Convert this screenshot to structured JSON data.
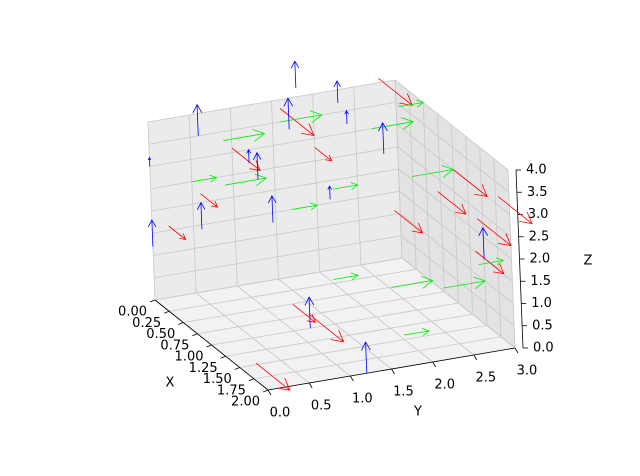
{
  "chart_data": {
    "type": "quiver3d",
    "xlabel": "X",
    "ylabel": "Y",
    "zlabel": "Z",
    "xlim": [
      0,
      2
    ],
    "ylim": [
      0,
      3
    ],
    "zlim": [
      0,
      4
    ],
    "xticks": [
      {
        "value": 0,
        "label": "0.00"
      },
      {
        "value": 0.25,
        "label": "0.25"
      },
      {
        "value": 0.5,
        "label": "0.50"
      },
      {
        "value": 0.75,
        "label": "0.75"
      },
      {
        "value": 1,
        "label": "1.00"
      },
      {
        "value": 1.25,
        "label": "1.25"
      },
      {
        "value": 1.5,
        "label": "1.50"
      },
      {
        "value": 1.75,
        "label": "1.75"
      },
      {
        "value": 2,
        "label": "2.00"
      }
    ],
    "yticks": [
      {
        "value": 0,
        "label": "0.0"
      },
      {
        "value": 0.5,
        "label": "0.5"
      },
      {
        "value": 1,
        "label": "1.0"
      },
      {
        "value": 1.5,
        "label": "1.5"
      },
      {
        "value": 2,
        "label": "2.0"
      },
      {
        "value": 2.5,
        "label": "2.5"
      },
      {
        "value": 3,
        "label": "3.0"
      }
    ],
    "zticks": [
      {
        "value": 0,
        "label": "0.0"
      },
      {
        "value": 0.5,
        "label": "0.5"
      },
      {
        "value": 1,
        "label": "1.0"
      },
      {
        "value": 1.5,
        "label": "1.5"
      },
      {
        "value": 2,
        "label": "2.0"
      },
      {
        "value": 2.5,
        "label": "2.5"
      },
      {
        "value": 3,
        "label": "3.0"
      },
      {
        "value": 3.5,
        "label": "3.5"
      },
      {
        "value": 4,
        "label": "4.0"
      }
    ],
    "grid": true,
    "series": [
      {
        "color": "#ff0000",
        "direction": "x",
        "x": [
          0,
          0,
          0,
          0,
          0,
          0,
          1,
          1,
          1.8,
          0.5,
          0.7,
          1,
          1.4,
          1.5,
          1.8
        ],
        "y": [
          0.2,
          0.6,
          1.0,
          1.6,
          2.8,
          2.0,
          1.0,
          1.2,
          0.0,
          2.6,
          3,
          3,
          3,
          2.9,
          3
        ],
        "z": [
          1.6,
          2.2,
          3.1,
          3.8,
          4.1,
          2.8,
          0.6,
          0.3,
          0.4,
          1.7,
          2.2,
          3,
          2.3,
          1.7,
          3.2
        ],
        "lengths": [
          0.3,
          0.3,
          0.5,
          0.6,
          0.6,
          0.3,
          0.4,
          0.6,
          0.6,
          0.5,
          0.5,
          0.6,
          0.6,
          0.5,
          0.6
        ]
      },
      {
        "color": "#00ee00",
        "direction": "y",
        "x": [
          0,
          0,
          0,
          0,
          1,
          0,
          0,
          1,
          1.5,
          1,
          0.5,
          0,
          1.5,
          2
        ],
        "y": [
          0.9,
          1.6,
          0.5,
          0.9,
          1.5,
          1.7,
          2.2,
          2.2,
          2.0,
          2.5,
          2.7,
          2.7,
          2.5,
          2.6
        ],
        "z": [
          3.3,
          3.5,
          2.5,
          2.3,
          1,
          1.5,
          1.8,
          0.6,
          0.1,
          3.0,
          4.0,
          3.0,
          1.0,
          2.0
        ],
        "lengths": [
          0.5,
          0.5,
          0.3,
          0.5,
          0.3,
          0.3,
          0.3,
          0.5,
          0.3,
          0.5,
          0.3,
          0.5,
          0.5,
          0.3
        ]
      },
      {
        "color": "#0000ff",
        "direction": "z",
        "x": [
          0,
          0,
          0,
          0,
          0,
          0,
          0,
          0,
          0.5,
          1,
          1,
          1,
          1.5,
          2,
          0,
          0
        ],
        "y": [
          0,
          0,
          0.6,
          0.6,
          1.2,
          1.3,
          1.7,
          1.8,
          2.5,
          0.8,
          1.2,
          1.5,
          3,
          1.2,
          2.3,
          2.4
        ],
        "z": [
          1.2,
          3.0,
          1.4,
          3.5,
          2.7,
          2.3,
          3.3,
          4.2,
          3.0,
          2.5,
          0,
          2.8,
          1.5,
          0,
          3.7,
          3.2
        ],
        "lengths": [
          0.6,
          0.2,
          0.6,
          0.7,
          0.3,
          0.6,
          0.7,
          0.6,
          0.7,
          0.6,
          0.7,
          0.3,
          0.7,
          0.7,
          0.5,
          0.3
        ]
      }
    ]
  }
}
